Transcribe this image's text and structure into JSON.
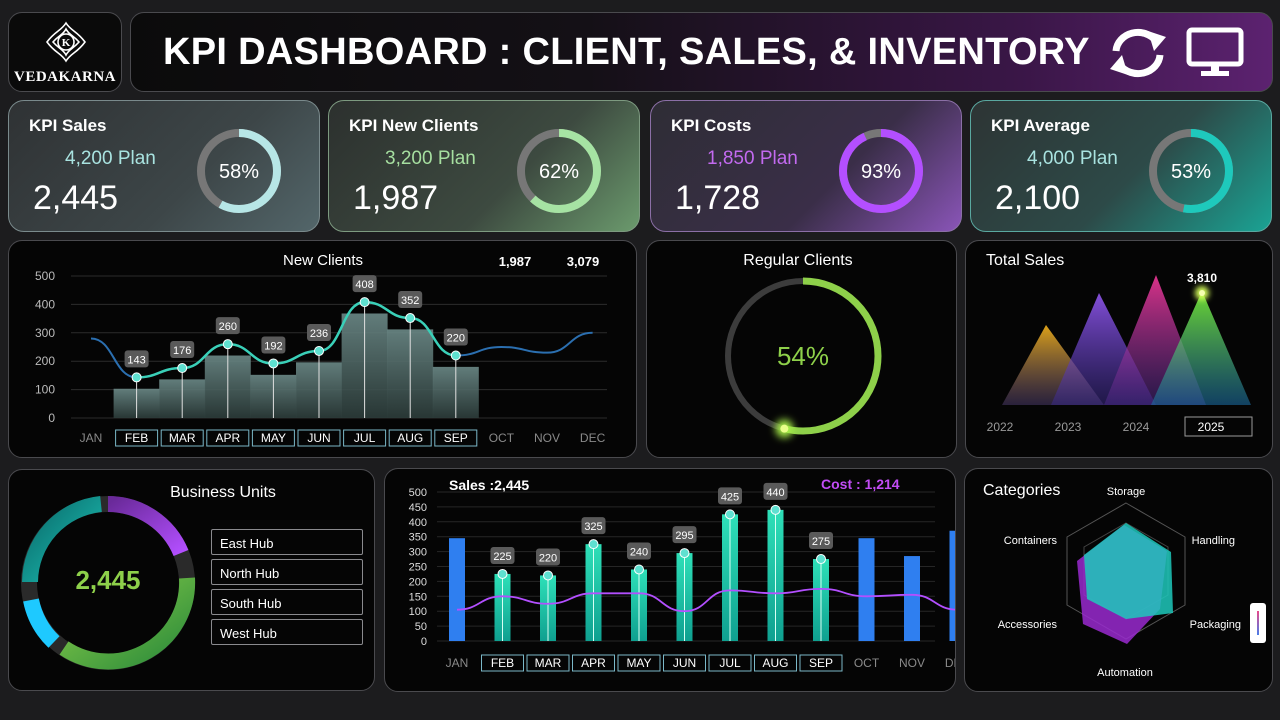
{
  "logo": {
    "text": "VEDAKARNA",
    "letter": "K"
  },
  "header": {
    "title": "KPI DASHBOARD : CLIENT, SALES, & INVENTORY"
  },
  "kpis": [
    {
      "title": "KPI Sales",
      "plan": "4,200 Plan",
      "value": "2,445",
      "percent": "58%",
      "progress": 0.58,
      "color": "#b7e6e6",
      "plan_color": "#a9e3e0"
    },
    {
      "title": "KPI New Clients",
      "plan": "3,200 Plan",
      "value": "1,987",
      "percent": "62%",
      "progress": 0.62,
      "color": "#a6e3a3",
      "plan_color": "#a6dfa0"
    },
    {
      "title": "KPI Costs",
      "plan": "1,850 Plan",
      "value": "1,728",
      "percent": "93%",
      "progress": 0.93,
      "color": "#b34fff",
      "plan_color": "#c36af0"
    },
    {
      "title": "KPI Average",
      "plan": "4,000 Plan",
      "value": "2,100",
      "percent": "53%",
      "progress": 0.53,
      "color": "#1ec9bc",
      "plan_color": "#a9e3e0"
    }
  ],
  "new_clients": {
    "title": "New Clients",
    "stat1": "1,987",
    "stat2": "3,079",
    "months": [
      "JAN",
      "FEB",
      "MAR",
      "APR",
      "MAY",
      "JUN",
      "JUL",
      "AUG",
      "SEP",
      "OCT",
      "NOV",
      "DEC"
    ],
    "active_months": [
      "FEB",
      "MAR",
      "APR",
      "MAY",
      "JUN",
      "JUL",
      "AUG",
      "SEP"
    ],
    "yticks": [
      "0",
      "100",
      "200",
      "300",
      "400",
      "500"
    ],
    "labels": [
      "143",
      "176",
      "260",
      "192",
      "236",
      "408",
      "352",
      "220"
    ]
  },
  "chart_data": [
    {
      "type": "line",
      "title": "New Clients",
      "categories": [
        "FEB",
        "MAR",
        "APR",
        "MAY",
        "JUN",
        "JUL",
        "AUG",
        "SEP"
      ],
      "values": [
        143,
        176,
        260,
        192,
        236,
        408,
        352,
        220
      ],
      "ylim": [
        0,
        500
      ],
      "extended_line": {
        "categories": [
          "JAN",
          "OCT",
          "NOV",
          "DEC"
        ],
        "values": [
          280,
          250,
          230,
          300
        ]
      }
    },
    {
      "type": "area",
      "title": "Total Sales",
      "categories": [
        "2022",
        "2023",
        "2024",
        "2025"
      ],
      "peak_label": "3,810",
      "selected": "2025"
    },
    {
      "type": "bar",
      "title": "Sales :2,445",
      "categories": [
        "JAN",
        "FEB",
        "MAR",
        "APR",
        "MAY",
        "JUN",
        "JUL",
        "AUG",
        "SEP",
        "OCT",
        "NOV",
        "DEC"
      ],
      "series": [
        {
          "name": "Sales",
          "values": [
            345,
            225,
            220,
            325,
            240,
            295,
            425,
            440,
            275,
            345,
            285,
            370
          ]
        },
        {
          "name": "Cost",
          "values": [
            105,
            150,
            125,
            160,
            160,
            100,
            170,
            160,
            175,
            150,
            155,
            105
          ]
        }
      ],
      "labels": [
        "225",
        "220",
        "325",
        "240",
        "295",
        "425",
        "440",
        "275"
      ],
      "ylim": [
        0,
        500
      ],
      "yticks": [
        "0",
        "50",
        "100",
        "150",
        "200",
        "250",
        "300",
        "350",
        "400",
        "450",
        "500"
      ]
    },
    {
      "type": "radar",
      "title": "Categories",
      "categories": [
        "Storage",
        "Handling",
        "Packaging",
        "Automation",
        "Accessories",
        "Containers"
      ]
    }
  ],
  "regular_clients": {
    "title": "Regular Clients",
    "percent": "54%",
    "progress": 0.54
  },
  "total_sales": {
    "title": "Total Sales",
    "peak": "3,810",
    "years": [
      "2022",
      "2023",
      "2024",
      "2025"
    ],
    "selected": "2025"
  },
  "business_units": {
    "title": "Business Units",
    "value": "2,445",
    "units": [
      "East Hub",
      "North Hub",
      "South Hub",
      "West Hub"
    ]
  },
  "sales": {
    "title": "Sales :2,445",
    "cost": "Cost : 1,214"
  },
  "categories": {
    "title": "Categories",
    "labels": [
      "Storage",
      "Handling",
      "Packaging",
      "Automation",
      "Accessories",
      "Containers"
    ]
  }
}
